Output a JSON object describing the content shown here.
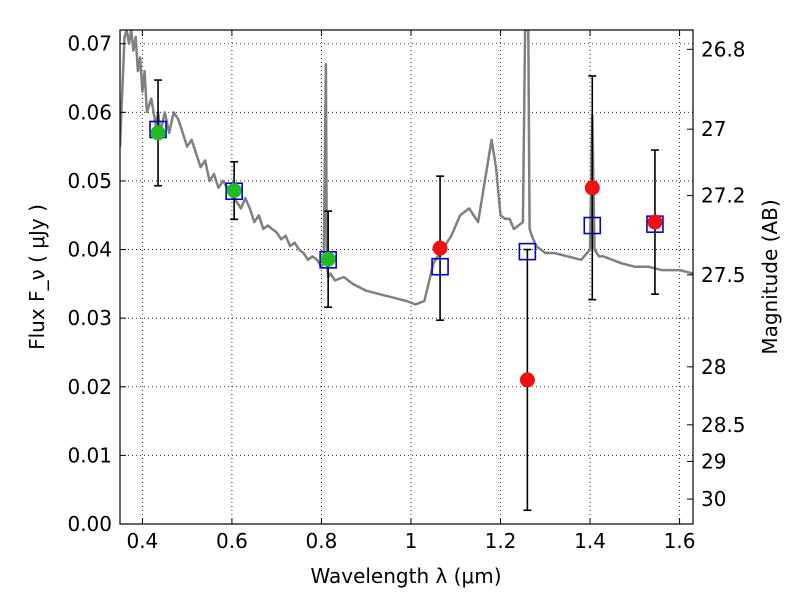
{
  "chart_data": {
    "type": "scatter",
    "xlabel": "Wavelength  λ (μm)",
    "ylabel": "Flux  F_ν  ( μJy )",
    "y2label": "Magnitude (AB)",
    "xlim": [
      0.35,
      1.63
    ],
    "ylim": [
      0.0,
      0.072
    ],
    "grid": true,
    "x_ticks": [
      0.4,
      0.6,
      0.8,
      1.0,
      1.2,
      1.4,
      1.6
    ],
    "x_tick_labels": [
      "0.4",
      "0.6",
      "0.8",
      "1",
      "1.2",
      "1.4",
      "1.6"
    ],
    "y_ticks": [
      0.0,
      0.01,
      0.02,
      0.03,
      0.04,
      0.05,
      0.06,
      0.07
    ],
    "y_tick_labels": [
      "0.00",
      "0.01",
      "0.02",
      "0.03",
      "0.04",
      "0.05",
      "0.06",
      "0.07"
    ],
    "y2_ticks": [
      26.8,
      27,
      27.2,
      27.5,
      28,
      28.5,
      29,
      30
    ],
    "y2_tick_labels": [
      "26.8",
      "27",
      "27.2",
      "27.5",
      "28",
      "28.5",
      "29",
      "30"
    ],
    "model_spectrum": {
      "color": "#808080",
      "x": [
        0.35,
        0.36,
        0.365,
        0.37,
        0.375,
        0.38,
        0.385,
        0.39,
        0.395,
        0.4,
        0.405,
        0.41,
        0.42,
        0.43,
        0.435,
        0.44,
        0.45,
        0.46,
        0.47,
        0.48,
        0.49,
        0.5,
        0.51,
        0.52,
        0.53,
        0.54,
        0.55,
        0.56,
        0.57,
        0.58,
        0.59,
        0.6,
        0.61,
        0.62,
        0.63,
        0.64,
        0.65,
        0.66,
        0.67,
        0.68,
        0.69,
        0.7,
        0.71,
        0.72,
        0.73,
        0.74,
        0.75,
        0.76,
        0.77,
        0.78,
        0.79,
        0.8,
        0.805,
        0.81,
        0.812,
        0.815,
        0.82,
        0.83,
        0.85,
        0.87,
        0.9,
        0.93,
        0.96,
        0.99,
        1.01,
        1.03,
        1.05,
        1.06,
        1.07,
        1.09,
        1.11,
        1.13,
        1.15,
        1.16,
        1.18,
        1.19,
        1.2,
        1.21,
        1.22,
        1.23,
        1.24,
        1.25,
        1.255,
        1.258,
        1.262,
        1.265,
        1.27,
        1.28,
        1.3,
        1.32,
        1.35,
        1.38,
        1.4,
        1.405,
        1.41,
        1.42,
        1.43,
        1.45,
        1.47,
        1.5,
        1.53,
        1.56,
        1.6,
        1.63
      ],
      "y": [
        0.055,
        0.071,
        0.072,
        0.07,
        0.072,
        0.069,
        0.071,
        0.066,
        0.068,
        0.063,
        0.066,
        0.06,
        0.062,
        0.058,
        0.06,
        0.057,
        0.06,
        0.057,
        0.06,
        0.059,
        0.057,
        0.055,
        0.056,
        0.054,
        0.052,
        0.053,
        0.05,
        0.051,
        0.049,
        0.05,
        0.049,
        0.048,
        0.047,
        0.046,
        0.0475,
        0.046,
        0.044,
        0.045,
        0.043,
        0.0435,
        0.043,
        0.0425,
        0.0415,
        0.042,
        0.0405,
        0.041,
        0.04,
        0.0395,
        0.0385,
        0.039,
        0.0385,
        0.0375,
        0.038,
        0.067,
        0.038,
        0.036,
        0.0365,
        0.0355,
        0.036,
        0.035,
        0.034,
        0.0335,
        0.033,
        0.0325,
        0.032,
        0.0325,
        0.038,
        0.039,
        0.04,
        0.042,
        0.045,
        0.046,
        0.044,
        0.048,
        0.056,
        0.052,
        0.045,
        0.0445,
        0.0445,
        0.043,
        0.0435,
        0.044,
        0.072,
        0.072,
        0.072,
        0.043,
        0.042,
        0.0405,
        0.0395,
        0.0395,
        0.039,
        0.0385,
        0.04,
        0.0595,
        0.04,
        0.039,
        0.039,
        0.0385,
        0.038,
        0.0375,
        0.0375,
        0.037,
        0.037,
        0.0365
      ]
    },
    "series": [
      {
        "marker": "square",
        "color": "#0000cc",
        "x": [
          0.435,
          0.605,
          0.815,
          1.065,
          1.26,
          1.405,
          1.545
        ],
        "y": [
          0.0575,
          0.0485,
          0.0385,
          0.0375,
          0.0397,
          0.0435,
          0.0437
        ]
      },
      {
        "marker": "circle",
        "color": "#22bb22",
        "x": [
          0.435,
          0.605,
          0.815
        ],
        "y": [
          0.057,
          0.0486,
          0.0386
        ],
        "yerr": [
          0.0077,
          0.0042,
          0.007
        ]
      },
      {
        "marker": "circle",
        "color": "#ee1111",
        "x": [
          1.065,
          1.26,
          1.405,
          1.545
        ],
        "y": [
          0.0402,
          0.021,
          0.049,
          0.044
        ],
        "yerr": [
          0.0105,
          0.019,
          0.0163,
          0.0105
        ]
      }
    ]
  }
}
